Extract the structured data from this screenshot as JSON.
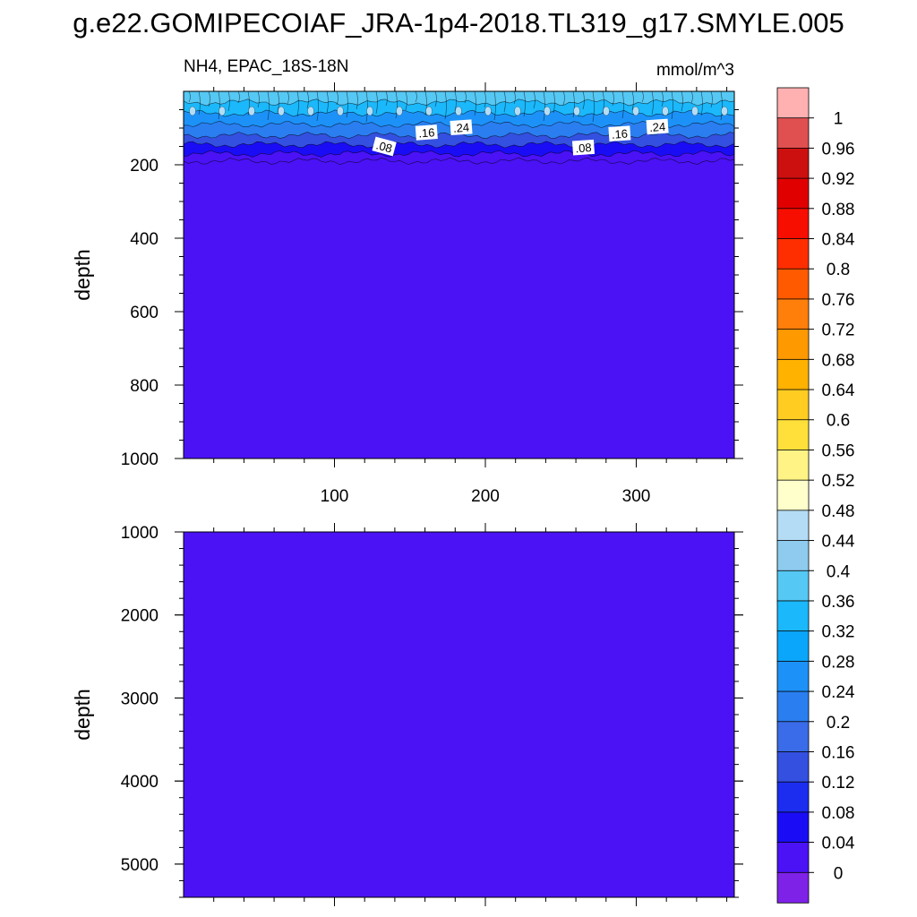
{
  "title": "g.e22.GOMIPECOIAF_JRA-1p4-2018.TL319_g17.SMYLE.005",
  "subtitle_left": "NH4, EPAC_18S-18N",
  "subtitle_right": "mmol/m^3",
  "colors": {
    "background_fill": "#4a12f5",
    "palette": [
      "#7f22e8",
      "#4a12f5",
      "#1a0df5",
      "#1c2df0",
      "#3450e0",
      "#3a6be8",
      "#2a7ef0",
      "#1c92f8",
      "#0aa6fb",
      "#1bb8fc",
      "#56c8f4",
      "#8ecbee",
      "#b4dcf5",
      "#ffffcc",
      "#fff385",
      "#ffe03a",
      "#ffcc22",
      "#ffb200",
      "#ff9900",
      "#ff7f0a",
      "#ff5a00",
      "#ff2e00",
      "#f80e00",
      "#e00000",
      "#cc1010",
      "#e05050",
      "#ffb0b0"
    ]
  },
  "chart_data": [
    {
      "type": "heatmap",
      "panel": "upper",
      "title": "NH4, EPAC_18S-18N",
      "units": "mmol/m^3",
      "ylabel": "depth",
      "xlabel": "",
      "xlim": [
        0,
        365
      ],
      "ylim": [
        1000,
        0
      ],
      "y_inverted": true,
      "xticks": [
        100,
        200,
        300
      ],
      "yticks": [
        200,
        400,
        600,
        800,
        1000
      ],
      "contour_labels": [
        {
          "text": ".08",
          "x": 133,
          "y": 150
        },
        {
          "text": ".16",
          "x": 161,
          "y": 112
        },
        {
          "text": ".24",
          "x": 184,
          "y": 98
        },
        {
          "text": ".08",
          "x": 265,
          "y": 153
        },
        {
          "text": ".16",
          "x": 289,
          "y": 115
        },
        {
          "text": ".24",
          "x": 314,
          "y": 96
        }
      ],
      "depth_profile": [
        {
          "depth": 30,
          "value": 0.38
        },
        {
          "depth": 60,
          "value": 0.32
        },
        {
          "depth": 90,
          "value": 0.26
        },
        {
          "depth": 120,
          "value": 0.2
        },
        {
          "depth": 145,
          "value": 0.14
        },
        {
          "depth": 170,
          "value": 0.07
        },
        {
          "depth": 190,
          "value": 0.03
        },
        {
          "depth": 1000,
          "value": 0.02
        }
      ]
    },
    {
      "type": "heatmap",
      "panel": "lower",
      "ylabel": "depth",
      "xlabel": "",
      "xlim": [
        0,
        365
      ],
      "ylim": [
        5400,
        1000
      ],
      "y_inverted": true,
      "xticks": [
        100,
        200,
        300
      ],
      "yticks": [
        1000,
        2000,
        3000,
        4000,
        5000
      ],
      "uniform_value": 0.02
    }
  ],
  "colorbar": {
    "labels": [
      "1",
      "0.96",
      "0.92",
      "0.88",
      "0.84",
      "0.8",
      "0.76",
      "0.72",
      "0.68",
      "0.64",
      "0.6",
      "0.56",
      "0.52",
      "0.48",
      "0.44",
      "0.4",
      "0.36",
      "0.32",
      "0.28",
      "0.24",
      "0.2",
      "0.16",
      "0.12",
      "0.08",
      "0.04",
      "0"
    ]
  }
}
